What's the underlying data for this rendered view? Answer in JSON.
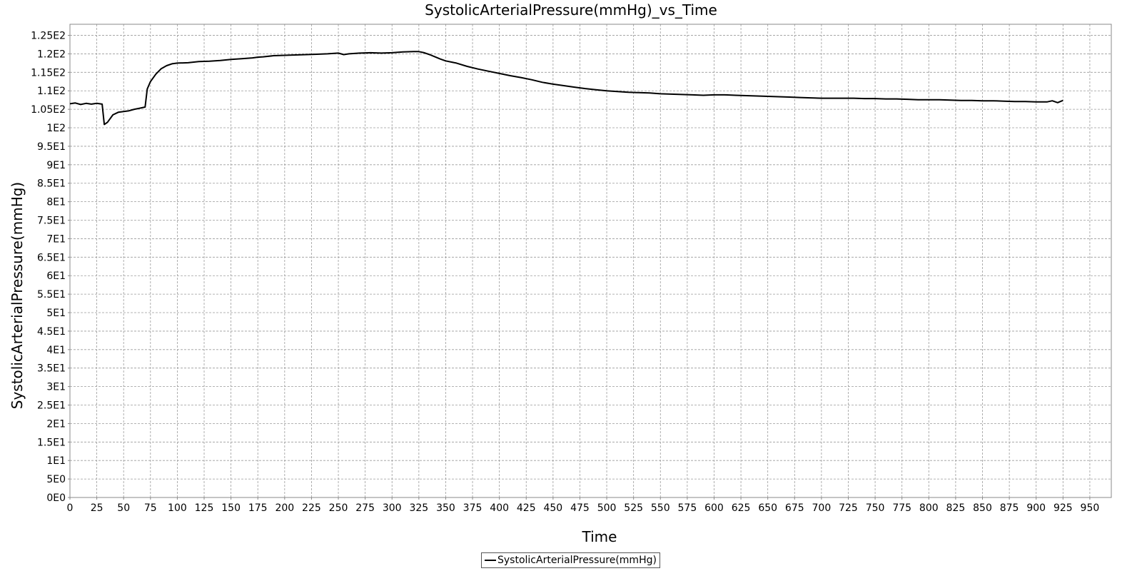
{
  "chart_data": {
    "type": "line",
    "title": "SystolicArterialPressure(mmHg)_vs_Time",
    "xlabel": "Time",
    "ylabel": "SystolicArterialPressure(mmHg)",
    "xlim": [
      0,
      970
    ],
    "ylim": [
      0,
      128
    ],
    "x_ticks": [
      0,
      25,
      50,
      75,
      100,
      125,
      150,
      175,
      200,
      225,
      250,
      275,
      300,
      325,
      350,
      375,
      400,
      425,
      450,
      475,
      500,
      525,
      550,
      575,
      600,
      625,
      650,
      675,
      700,
      725,
      750,
      775,
      800,
      825,
      850,
      875,
      900,
      925,
      950
    ],
    "y_ticks": [
      {
        "value": 0,
        "label": "0E0"
      },
      {
        "value": 5,
        "label": "5E0"
      },
      {
        "value": 10,
        "label": "1E1"
      },
      {
        "value": 15,
        "label": "1.5E1"
      },
      {
        "value": 20,
        "label": "2E1"
      },
      {
        "value": 25,
        "label": "2.5E1"
      },
      {
        "value": 30,
        "label": "3E1"
      },
      {
        "value": 35,
        "label": "3.5E1"
      },
      {
        "value": 40,
        "label": "4E1"
      },
      {
        "value": 45,
        "label": "4.5E1"
      },
      {
        "value": 50,
        "label": "5E1"
      },
      {
        "value": 55,
        "label": "5.5E1"
      },
      {
        "value": 60,
        "label": "6E1"
      },
      {
        "value": 65,
        "label": "6.5E1"
      },
      {
        "value": 70,
        "label": "7E1"
      },
      {
        "value": 75,
        "label": "7.5E1"
      },
      {
        "value": 80,
        "label": "8E1"
      },
      {
        "value": 85,
        "label": "8.5E1"
      },
      {
        "value": 90,
        "label": "9E1"
      },
      {
        "value": 95,
        "label": "9.5E1"
      },
      {
        "value": 100,
        "label": "1E2"
      },
      {
        "value": 105,
        "label": "1.05E2"
      },
      {
        "value": 110,
        "label": "1.1E2"
      },
      {
        "value": 115,
        "label": "1.15E2"
      },
      {
        "value": 120,
        "label": "1.2E2"
      },
      {
        "value": 125,
        "label": "1.25E2"
      }
    ],
    "grid": true,
    "legend": {
      "position": "bottom-center"
    },
    "series": [
      {
        "name": "SystolicArterialPressure(mmHg)",
        "color": "#000000",
        "x": [
          0,
          5,
          10,
          15,
          20,
          25,
          30,
          32,
          35,
          40,
          45,
          50,
          55,
          60,
          65,
          70,
          72,
          75,
          80,
          85,
          90,
          95,
          100,
          110,
          120,
          130,
          140,
          150,
          160,
          170,
          175,
          180,
          190,
          200,
          210,
          220,
          230,
          240,
          250,
          255,
          260,
          270,
          280,
          290,
          300,
          310,
          320,
          325,
          330,
          335,
          340,
          345,
          350,
          360,
          370,
          380,
          390,
          400,
          410,
          420,
          430,
          440,
          450,
          460,
          470,
          480,
          490,
          500,
          510,
          520,
          530,
          540,
          550,
          560,
          570,
          580,
          590,
          600,
          610,
          620,
          630,
          640,
          650,
          660,
          670,
          680,
          690,
          700,
          710,
          720,
          730,
          740,
          750,
          760,
          770,
          780,
          790,
          800,
          810,
          820,
          830,
          840,
          850,
          860,
          870,
          880,
          890,
          900,
          910,
          915,
          920,
          925
        ],
        "y": [
          106.5,
          106.7,
          106.3,
          106.6,
          106.4,
          106.6,
          106.4,
          100.9,
          101.5,
          103.5,
          104.2,
          104.4,
          104.6,
          105.0,
          105.3,
          105.6,
          110.5,
          112.5,
          114.5,
          116.0,
          116.8,
          117.3,
          117.5,
          117.6,
          117.9,
          118.0,
          118.2,
          118.5,
          118.7,
          118.9,
          119.1,
          119.2,
          119.5,
          119.6,
          119.7,
          119.8,
          119.9,
          120.0,
          120.2,
          119.8,
          120.0,
          120.2,
          120.3,
          120.2,
          120.3,
          120.5,
          120.6,
          120.6,
          120.3,
          119.8,
          119.2,
          118.6,
          118.1,
          117.5,
          116.6,
          115.9,
          115.3,
          114.7,
          114.1,
          113.6,
          113.0,
          112.3,
          111.8,
          111.4,
          111.0,
          110.6,
          110.3,
          110.0,
          109.8,
          109.6,
          109.5,
          109.4,
          109.2,
          109.1,
          109.0,
          108.9,
          108.8,
          108.9,
          108.9,
          108.8,
          108.7,
          108.6,
          108.5,
          108.4,
          108.3,
          108.2,
          108.1,
          108.0,
          108.0,
          108.0,
          108.0,
          107.9,
          107.9,
          107.8,
          107.8,
          107.7,
          107.6,
          107.6,
          107.6,
          107.5,
          107.4,
          107.4,
          107.3,
          107.3,
          107.2,
          107.1,
          107.1,
          107.0,
          107.0,
          107.3,
          106.8,
          107.4
        ]
      }
    ]
  }
}
